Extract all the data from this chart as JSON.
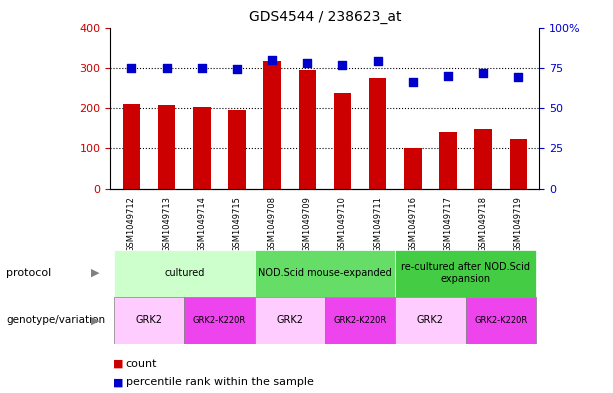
{
  "title": "GDS4544 / 238623_at",
  "samples": [
    "GSM1049712",
    "GSM1049713",
    "GSM1049714",
    "GSM1049715",
    "GSM1049708",
    "GSM1049709",
    "GSM1049710",
    "GSM1049711",
    "GSM1049716",
    "GSM1049717",
    "GSM1049718",
    "GSM1049719"
  ],
  "counts": [
    210,
    208,
    203,
    194,
    318,
    295,
    238,
    275,
    100,
    140,
    149,
    124
  ],
  "percentiles": [
    75,
    75,
    75,
    74,
    80,
    78,
    77,
    79,
    66,
    70,
    72,
    69
  ],
  "ylim_left": [
    0,
    400
  ],
  "ylim_right": [
    0,
    100
  ],
  "yticks_left": [
    0,
    100,
    200,
    300,
    400
  ],
  "yticks_right": [
    0,
    25,
    50,
    75,
    100
  ],
  "ytick_labels_right": [
    "0",
    "25",
    "50",
    "75",
    "100%"
  ],
  "bar_color": "#cc0000",
  "dot_color": "#0000cc",
  "bar_width": 0.5,
  "dot_size": 30,
  "tick_label_color_left": "#cc0000",
  "tick_label_color_right": "#0000cc",
  "protocol_row": {
    "label": "protocol",
    "groups": [
      {
        "name": "cultured",
        "span": [
          0,
          3
        ],
        "color": "#ccffcc"
      },
      {
        "name": "NOD.Scid mouse-expanded",
        "span": [
          4,
          7
        ],
        "color": "#66dd66"
      },
      {
        "name": "re-cultured after NOD.Scid\nexpansion",
        "span": [
          8,
          11
        ],
        "color": "#44cc44"
      }
    ]
  },
  "genotype_row": {
    "label": "genotype/variation",
    "groups": [
      {
        "name": "GRK2",
        "span": [
          0,
          1
        ],
        "color": "#ffccff"
      },
      {
        "name": "GRK2-K220R",
        "span": [
          2,
          3
        ],
        "color": "#ee44ee"
      },
      {
        "name": "GRK2",
        "span": [
          4,
          5
        ],
        "color": "#ffccff"
      },
      {
        "name": "GRK2-K220R",
        "span": [
          6,
          7
        ],
        "color": "#ee44ee"
      },
      {
        "name": "GRK2",
        "span": [
          8,
          9
        ],
        "color": "#ffccff"
      },
      {
        "name": "GRK2-K220R",
        "span": [
          10,
          11
        ],
        "color": "#ee44ee"
      }
    ]
  },
  "legend": [
    {
      "label": "count",
      "color": "#cc0000"
    },
    {
      "label": "percentile rank within the sample",
      "color": "#0000cc"
    }
  ]
}
